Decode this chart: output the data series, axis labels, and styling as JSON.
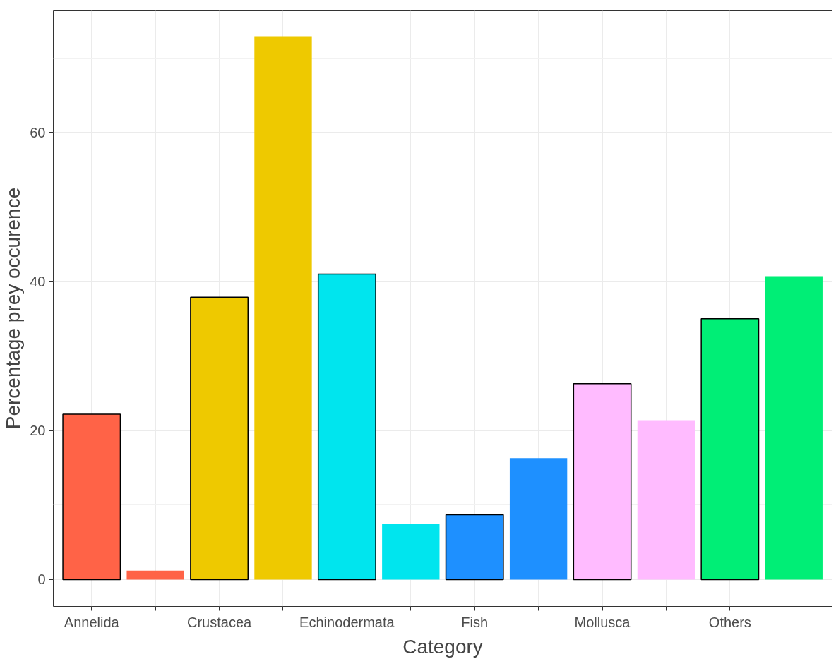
{
  "chart_data": {
    "type": "bar",
    "xlabel": "Category",
    "ylabel": "Percentage prey occurence",
    "categories": [
      "Annelida",
      null,
      "Crustacea",
      null,
      "Echinodermata",
      null,
      "Fish",
      null,
      "Mollusca",
      null,
      "Others",
      null
    ],
    "values": [
      22.2,
      1.2,
      37.9,
      72.9,
      41.0,
      7.5,
      8.7,
      16.3,
      26.3,
      21.4,
      35.0,
      40.7
    ],
    "colors": [
      "#ff6347",
      "#ff6347",
      "#eec900",
      "#eec900",
      "#00e5ee",
      "#00e5ee",
      "#1e90ff",
      "#1e90ff",
      "#ffbbff",
      "#ffbbff",
      "#00ee76",
      "#00ee76"
    ],
    "ylim": [
      -3.6,
      76.4
    ],
    "yticks": [
      0,
      20,
      40,
      60
    ],
    "grid": true
  }
}
